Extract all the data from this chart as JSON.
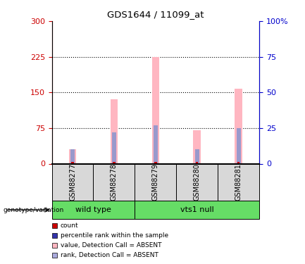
{
  "title": "GDS1644 / 11099_at",
  "samples": [
    "GSM88277",
    "GSM88278",
    "GSM88279",
    "GSM88280",
    "GSM88281"
  ],
  "pink_values": [
    30,
    135,
    225,
    70,
    158
  ],
  "blue_ranks_pct": [
    10,
    22,
    27,
    10,
    25
  ],
  "left_ylim": [
    0,
    300
  ],
  "right_ylim": [
    0,
    100
  ],
  "left_yticks": [
    0,
    75,
    150,
    225,
    300
  ],
  "right_yticks": [
    0,
    25,
    50,
    75,
    100
  ],
  "right_yticklabels": [
    "0",
    "25",
    "50",
    "75",
    "100%"
  ],
  "grid_vals": [
    75,
    150,
    225
  ],
  "pink_color": "#FFB6C1",
  "blue_color": "#9999CC",
  "red_color": "#CC0000",
  "green_color": "#66DD66",
  "gray_color": "#D8D8D8",
  "left_axis_color": "#CC0000",
  "right_axis_color": "#0000CC",
  "pink_bar_width": 0.18,
  "blue_bar_width": 0.1,
  "red_bar_width": 0.06
}
